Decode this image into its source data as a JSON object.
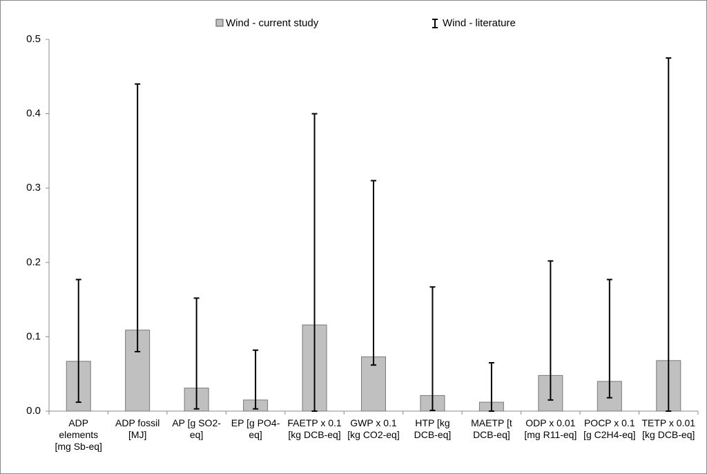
{
  "chart_data": {
    "type": "bar",
    "categories": [
      "ADP elements [mg Sb-eq]",
      "ADP fossil [MJ]",
      "AP [g SO2-eq]",
      "EP [g PO4-eq]",
      "FAETP x 0.1 [kg DCB-eq]",
      "GWP x 0.1 [kg CO2-eq]",
      "HTP [kg DCB-eq]",
      "MAETP [t DCB-eq]",
      "ODP x 0.01 [mg R11-eq]",
      "POCP x 0.1 [g C2H4-eq]",
      "TETP x 0.01 [kg DCB-eq]"
    ],
    "series": [
      {
        "name": "Wind - current study",
        "color": "#c0c0c0",
        "values": [
          0.067,
          0.109,
          0.031,
          0.015,
          0.116,
          0.073,
          0.021,
          0.012,
          0.048,
          0.04,
          0.068
        ]
      },
      {
        "name": "Wind - literature",
        "color": "#000000",
        "low": [
          0.012,
          0.08,
          0.003,
          0.003,
          0.0,
          0.062,
          0.001,
          0.0,
          0.015,
          0.018,
          0.0
        ],
        "high": [
          0.177,
          0.44,
          0.152,
          0.082,
          0.4,
          0.31,
          0.167,
          0.065,
          0.202,
          0.177,
          0.475
        ]
      }
    ],
    "ylim": [
      0,
      0.5
    ],
    "yticks": [
      {
        "value": 0,
        "label": "0.0"
      },
      0.1,
      0.2,
      0.3,
      0.4,
      0.5
    ],
    "grid": false
  }
}
